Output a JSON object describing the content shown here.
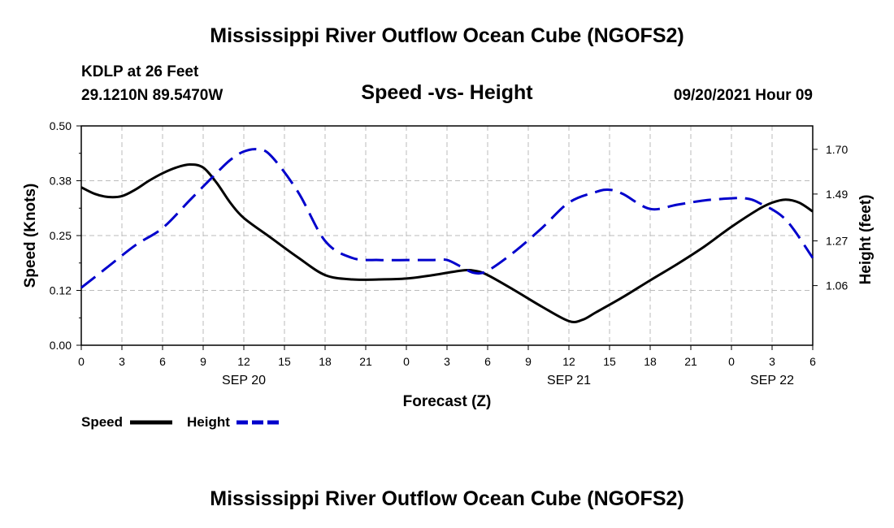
{
  "header": {
    "title": "Mississippi River Outflow Ocean Cube (NGOFS2)",
    "station": "KDLP at 26 Feet",
    "coords": "29.1210N  89.5470W",
    "datetime": "09/20/2021 Hour 09"
  },
  "footer": {
    "title": "Mississippi River Outflow Ocean Cube (NGOFS2)"
  },
  "colors": {
    "speed": "#000000",
    "height": "#0000cc",
    "grid": "#bbbbbb"
  },
  "chart_data": {
    "type": "line",
    "title": "Speed -vs- Height",
    "xlabel": "Forecast (Z)",
    "ylabel": "Speed (Knots)",
    "y2label": "Height (feet)",
    "x_hours_range": [
      0,
      54
    ],
    "x_ticks": [
      {
        "h": 0,
        "label": "0"
      },
      {
        "h": 3,
        "label": "3"
      },
      {
        "h": 6,
        "label": "6"
      },
      {
        "h": 9,
        "label": "9"
      },
      {
        "h": 12,
        "label": "12"
      },
      {
        "h": 15,
        "label": "15"
      },
      {
        "h": 18,
        "label": "18"
      },
      {
        "h": 21,
        "label": "21"
      },
      {
        "h": 24,
        "label": "0"
      },
      {
        "h": 27,
        "label": "3"
      },
      {
        "h": 30,
        "label": "6"
      },
      {
        "h": 33,
        "label": "9"
      },
      {
        "h": 36,
        "label": "12"
      },
      {
        "h": 39,
        "label": "15"
      },
      {
        "h": 42,
        "label": "18"
      },
      {
        "h": 45,
        "label": "21"
      },
      {
        "h": 48,
        "label": "0"
      },
      {
        "h": 51,
        "label": "3"
      },
      {
        "h": 54,
        "label": "6"
      }
    ],
    "date_labels": [
      {
        "h": 12,
        "label": "SEP 20"
      },
      {
        "h": 36,
        "label": "SEP 21"
      },
      {
        "h": 51,
        "label": "SEP 22"
      }
    ],
    "ylim": [
      0,
      0.5
    ],
    "y_ticks": [
      {
        "v": 0.0,
        "label": "0.00"
      },
      {
        "v": 0.125,
        "label": "0.12"
      },
      {
        "v": 0.25,
        "label": "0.25"
      },
      {
        "v": 0.375,
        "label": "0.38"
      },
      {
        "v": 0.5,
        "label": "0.50"
      }
    ],
    "y2lim": [
      0.78,
      1.81
    ],
    "y2_ticks": [
      {
        "v": 1.06,
        "label": "1.06"
      },
      {
        "v": 1.27,
        "label": "1.27"
      },
      {
        "v": 1.49,
        "label": "1.49"
      },
      {
        "v": 1.7,
        "label": "1.70"
      }
    ],
    "series": [
      {
        "name": "Speed",
        "axis": "left",
        "style": "solid",
        "x": [
          0,
          1,
          2,
          3,
          4,
          5,
          6,
          7,
          8,
          9,
          10,
          11,
          12,
          14,
          16,
          18,
          20,
          22,
          24,
          26,
          28,
          29,
          30,
          32,
          34,
          36,
          37,
          38,
          40,
          42,
          44,
          46,
          48,
          50,
          51,
          52,
          53,
          54
        ],
        "y": [
          0.36,
          0.345,
          0.338,
          0.34,
          0.355,
          0.375,
          0.392,
          0.405,
          0.412,
          0.405,
          0.37,
          0.325,
          0.29,
          0.245,
          0.2,
          0.16,
          0.15,
          0.15,
          0.152,
          0.16,
          0.17,
          0.17,
          0.16,
          0.125,
          0.088,
          0.055,
          0.058,
          0.075,
          0.11,
          0.148,
          0.185,
          0.225,
          0.27,
          0.31,
          0.325,
          0.332,
          0.325,
          0.305
        ]
      },
      {
        "name": "Height",
        "axis": "right",
        "style": "dashed",
        "x": [
          0,
          2,
          4,
          6,
          8,
          10,
          11,
          12,
          13,
          14,
          16,
          18,
          20,
          22,
          24,
          26,
          27,
          28,
          29,
          30,
          32,
          34,
          36,
          38,
          39,
          40,
          42,
          44,
          46,
          48,
          49,
          50,
          52,
          54
        ],
        "y": [
          1.05,
          1.15,
          1.25,
          1.33,
          1.46,
          1.59,
          1.65,
          1.69,
          1.7,
          1.67,
          1.5,
          1.27,
          1.19,
          1.18,
          1.18,
          1.18,
          1.18,
          1.15,
          1.12,
          1.13,
          1.22,
          1.33,
          1.45,
          1.5,
          1.51,
          1.49,
          1.42,
          1.44,
          1.46,
          1.47,
          1.47,
          1.45,
          1.37,
          1.19
        ]
      }
    ],
    "legend": [
      {
        "name": "Speed",
        "label": "Speed"
      },
      {
        "name": "Height",
        "label": "Height"
      }
    ]
  }
}
